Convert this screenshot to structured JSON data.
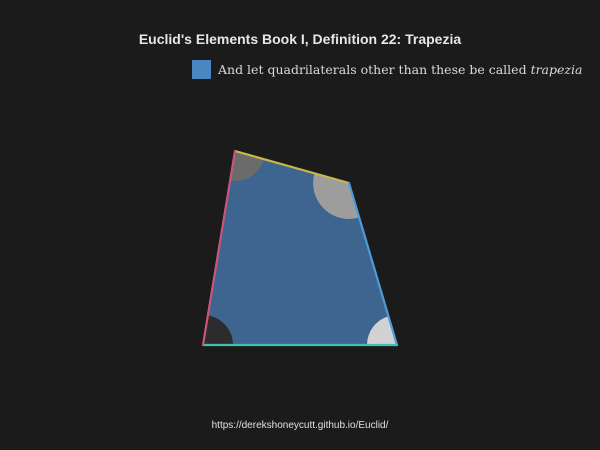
{
  "title": "Euclid's Elements Book I, Definition 22: Trapezia",
  "legend": {
    "text_before": "And let quadrilaterals other than these be called ",
    "text_italic": "trapezia",
    "swatch_color": "#4a86c0"
  },
  "colors": {
    "fill": "#3d6590",
    "side_top": "#c9b94a",
    "side_left": "#c8557a",
    "side_right": "#4f9ad8",
    "side_bottom": "#40c2ad"
  },
  "footer": {
    "url": "https://derekshoneycutt.github.io/Euclid/"
  }
}
